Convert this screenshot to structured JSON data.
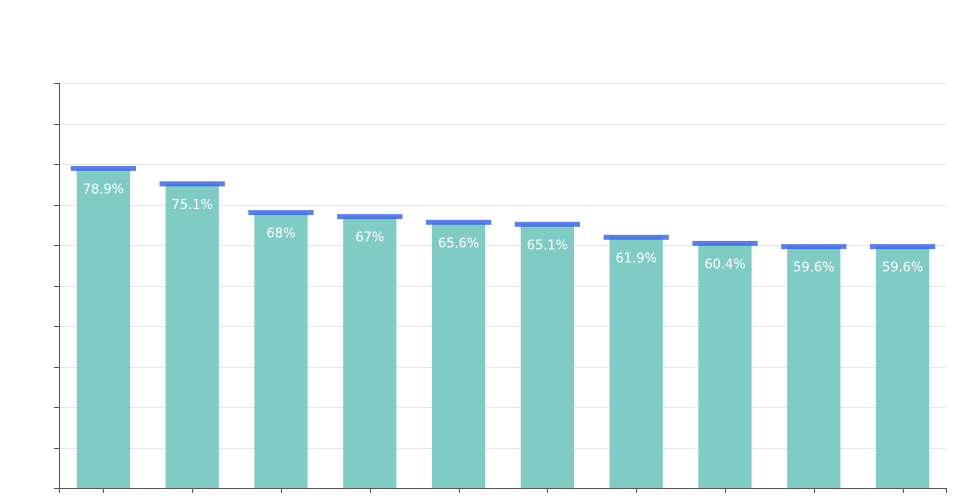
{
  "chart_data": {
    "type": "bar",
    "title": "",
    "xlabel": "",
    "ylabel": "",
    "categories": [
      "",
      "",
      "",
      "",
      "",
      "",
      "",
      "",
      "",
      ""
    ],
    "values": [
      78.9,
      75.1,
      68,
      67,
      65.6,
      65.1,
      61.9,
      60.4,
      59.6,
      59.6
    ],
    "data_labels": [
      "78.9%",
      "75.1%",
      "68%",
      "67%",
      "65.6%",
      "65.1%",
      "61.9%",
      "60.4%",
      "59.6%",
      "59.6%"
    ],
    "ylim": [
      0,
      100
    ],
    "ytick_count": 11,
    "grid": true,
    "bar_color": "#80cbc4",
    "marker_color": "#4169e1",
    "label_color": "#ffffff",
    "gridline_color": "#e6e6e6",
    "axis_color": "#555555"
  }
}
